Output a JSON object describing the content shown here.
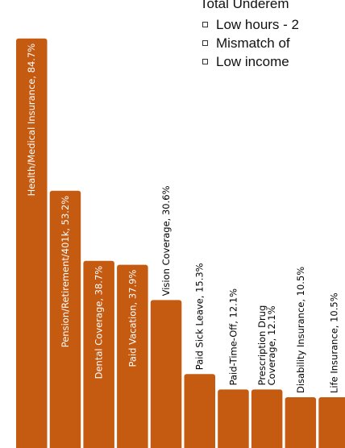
{
  "chart_data": {
    "type": "bar",
    "categories": [
      "Health/Medical Insurance",
      "Pension/Retirement/401k",
      "Dental Coverage",
      "Paid Vacation",
      "Vision Coverage",
      "Paid Sick Leave",
      "Paid-Time-Off",
      "Prescription Drug Coverage",
      "Disability Insurance",
      "Life Insurance"
    ],
    "values": [
      84.7,
      53.2,
      38.7,
      37.9,
      30.6,
      15.3,
      12.1,
      12.1,
      10.5,
      10.5
    ],
    "data_labels": [
      [
        "Health/Medical Insurance, 84.7%"
      ],
      [
        "Pension/Retirement/401k, 53.2%"
      ],
      [
        "Dental Coverage, 38.7%"
      ],
      [
        "Paid Vacation, 37.9%"
      ],
      [
        "Vision Coverage, 30.6%"
      ],
      [
        "Paid Sick Leave, 15.3%"
      ],
      [
        "Paid-Time-Off, 12.1%"
      ],
      [
        "Prescription Drug",
        "Coverage, 12.1%"
      ],
      [
        "Disability Insurance, 10.5%"
      ],
      [
        "Life Insurance, 10.5%"
      ]
    ],
    "ylim": [
      0,
      100
    ],
    "colors": {
      "bar": "#c55a11",
      "bar_label_inside": "#ffffff",
      "bar_label_outside": "#000000"
    }
  },
  "legend": {
    "title": "Total Underem",
    "items": [
      "Low hours - 2",
      "Mismatch of",
      "Low income"
    ]
  }
}
